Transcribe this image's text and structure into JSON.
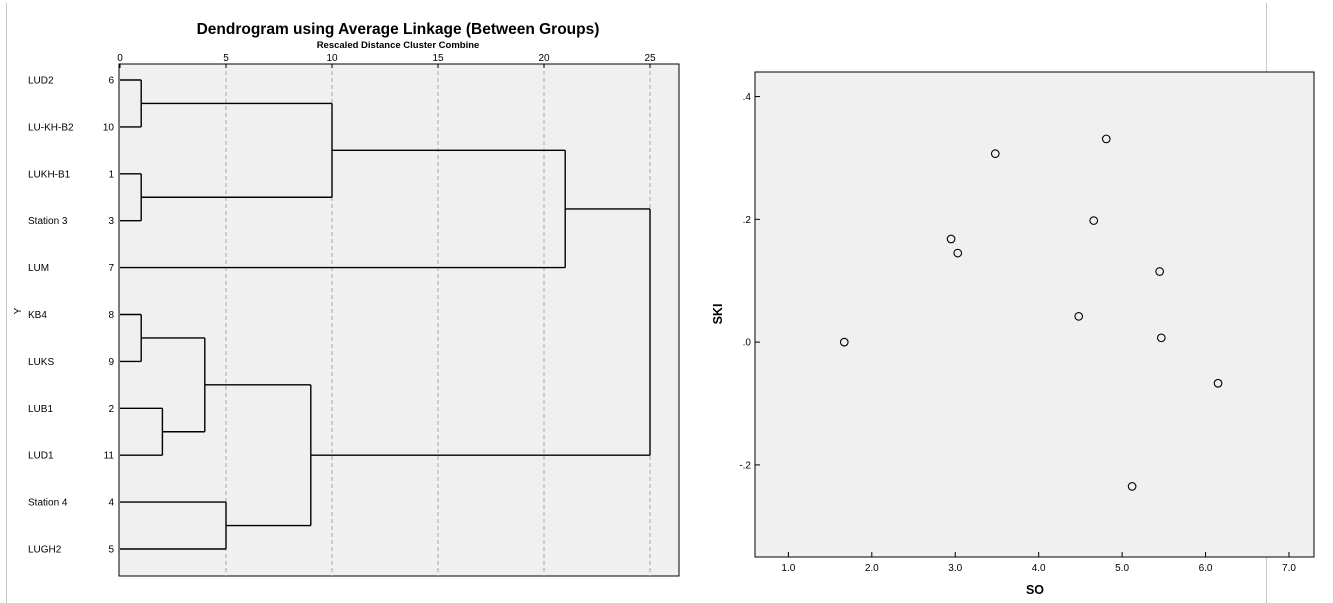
{
  "chart_data": [
    {
      "type": "dendrogram",
      "title": "Dendrogram using Average Linkage (Between Groups)",
      "subtitle": "Rescaled Distance Cluster Combine",
      "axis_side_label": "Y",
      "xlim": [
        0,
        25
      ],
      "x_ticks": [
        0,
        5,
        10,
        15,
        20,
        25
      ],
      "gridlines": "dashed vertical at 5, 10, 15, 20, 25",
      "leaves": [
        {
          "label": "LUD2",
          "case": "6"
        },
        {
          "label": "LU-KH-B2",
          "case": "10"
        },
        {
          "label": "LUKH-B1",
          "case": "1"
        },
        {
          "label": "Station 3",
          "case": "3"
        },
        {
          "label": "LUM",
          "case": "7"
        },
        {
          "label": "KB4",
          "case": "8"
        },
        {
          "label": "LUKS",
          "case": "9"
        },
        {
          "label": "LUB1",
          "case": "2"
        },
        {
          "label": "LUD1",
          "case": "11"
        },
        {
          "label": "Station 4",
          "case": "4"
        },
        {
          "label": "LUGH2",
          "case": "5"
        }
      ],
      "merges": [
        {
          "a": "L0",
          "b": "L1",
          "height": 1
        },
        {
          "a": "L2",
          "b": "L3",
          "height": 1
        },
        {
          "a": "L5",
          "b": "L6",
          "height": 1
        },
        {
          "a": "L7",
          "b": "L8",
          "height": 2
        },
        {
          "a": "M2",
          "b": "M3",
          "height": 4
        },
        {
          "a": "L9",
          "b": "L10",
          "height": 5
        },
        {
          "a": "M0",
          "b": "M1",
          "height": 10
        },
        {
          "a": "M4",
          "b": "M5",
          "height": 9
        },
        {
          "a": "M6",
          "b": "L4",
          "height": 21
        },
        {
          "a": "M8",
          "b": "M7",
          "height": 25
        }
      ]
    },
    {
      "type": "scatter",
      "title": "",
      "xlabel": "SO",
      "ylabel": "SKI",
      "xlim": [
        0.6,
        7.3
      ],
      "ylim": [
        -0.35,
        0.44
      ],
      "x_ticks": [
        "1.0",
        "2.0",
        "3.0",
        "4.0",
        "5.0",
        "6.0",
        "7.0"
      ],
      "y_ticks": [
        ".4",
        ".2",
        ".0",
        "-.2"
      ],
      "marker": "open circle",
      "grid": false,
      "points": [
        {
          "x": 1.67,
          "y": 0.0
        },
        {
          "x": 2.95,
          "y": 0.168
        },
        {
          "x": 3.03,
          "y": 0.145
        },
        {
          "x": 3.48,
          "y": 0.307
        },
        {
          "x": 4.48,
          "y": 0.042
        },
        {
          "x": 4.66,
          "y": 0.198
        },
        {
          "x": 4.81,
          "y": 0.331
        },
        {
          "x": 5.12,
          "y": -0.235
        },
        {
          "x": 5.45,
          "y": 0.115
        },
        {
          "x": 5.47,
          "y": 0.007
        },
        {
          "x": 6.15,
          "y": -0.067
        }
      ]
    }
  ],
  "colors": {
    "plot_background": "#f0f0f0",
    "line": "#000000",
    "gridline": "#a8a8a8",
    "frame": "#000000"
  }
}
